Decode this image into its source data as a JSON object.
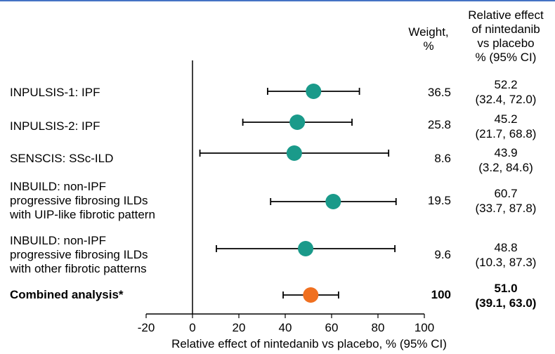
{
  "header": {
    "weight": "Weight,\n%",
    "effect": "Relative effect\nof nintedanib\nvs placebo\n% (95% CI)"
  },
  "studies": [
    {
      "label": "INPULSIS-1: IPF",
      "weight": "36.5",
      "effect": "52.2\n(32.4, 72.0)"
    },
    {
      "label": "INPULSIS-2: IPF",
      "weight": "25.8",
      "effect": "45.2\n(21.7, 68.8)"
    },
    {
      "label": "SENSCIS: SSc-ILD",
      "weight": "8.6",
      "effect": "43.9\n(3.2, 84.6)"
    },
    {
      "label": "INBUILD: non-IPF\nprogressive fibrosing ILDs\nwith UIP-like fibrotic pattern",
      "weight": "19.5",
      "effect": "60.7\n(33.7, 87.8)"
    },
    {
      "label": "INBUILD: non-IPF\nprogressive fibrosing ILDs\nwith other fibrotic patterns",
      "weight": "9.6",
      "effect": "48.8\n(10.3, 87.3)"
    },
    {
      "label": "Combined analysis*",
      "weight": "100",
      "effect": "51.0\n(39.1, 63.0)"
    }
  ],
  "colors": {
    "study_marker": "#1a9a8a",
    "combined_marker": "#f07020",
    "accent_rule": "#4472c4"
  },
  "chart_data": {
    "type": "forest",
    "xlabel": "Relative effect of nintedanib vs placebo, % (95% CI)",
    "xlim": [
      -20,
      100
    ],
    "xticks": [
      -20,
      0,
      20,
      40,
      60,
      80,
      100
    ],
    "reference_line": 0,
    "series": [
      {
        "name": "INPULSIS-1: IPF",
        "estimate": 52.2,
        "ci": [
          32.4,
          72.0
        ],
        "weight": 36.5
      },
      {
        "name": "INPULSIS-2: IPF",
        "estimate": 45.2,
        "ci": [
          21.7,
          68.8
        ],
        "weight": 25.8
      },
      {
        "name": "SENSCIS: SSc-ILD",
        "estimate": 43.9,
        "ci": [
          3.2,
          84.6
        ],
        "weight": 8.6
      },
      {
        "name": "INBUILD: non-IPF progressive fibrosing ILDs with UIP-like fibrotic pattern",
        "estimate": 60.7,
        "ci": [
          33.7,
          87.8
        ],
        "weight": 19.5
      },
      {
        "name": "INBUILD: non-IPF progressive fibrosing ILDs with other fibrotic patterns",
        "estimate": 48.8,
        "ci": [
          10.3,
          87.3
        ],
        "weight": 9.6
      },
      {
        "name": "Combined analysis*",
        "estimate": 51.0,
        "ci": [
          39.1,
          63.0
        ],
        "weight": 100,
        "combined": true
      }
    ]
  }
}
